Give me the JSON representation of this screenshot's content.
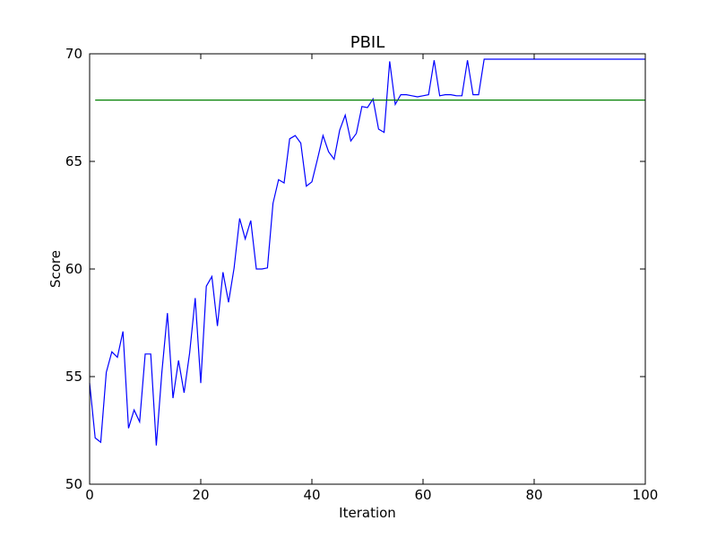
{
  "chart_data": {
    "type": "line",
    "title": "PBIL",
    "xlabel": "Iteration",
    "ylabel": "Score",
    "xlim": [
      0,
      100
    ],
    "ylim": [
      50,
      70
    ],
    "xticks": [
      0,
      20,
      40,
      60,
      80,
      100
    ],
    "yticks": [
      50,
      55,
      60,
      65,
      70
    ],
    "xtick_labels": [
      "0",
      "20",
      "40",
      "60",
      "80",
      "100"
    ],
    "ytick_labels": [
      "50",
      "55",
      "60",
      "65",
      "70"
    ],
    "grid": false,
    "legend": "none",
    "series": [
      {
        "color": "#0000ff",
        "x": [
          0,
          1,
          2,
          3,
          4,
          5,
          6,
          7,
          8,
          9,
          10,
          11,
          12,
          13,
          14,
          15,
          16,
          17,
          18,
          19,
          20,
          21,
          22,
          23,
          24,
          25,
          26,
          27,
          28,
          29,
          30,
          31,
          32,
          33,
          34,
          35,
          36,
          37,
          38,
          39,
          40,
          41,
          42,
          43,
          44,
          45,
          46,
          47,
          48,
          49,
          50,
          51,
          52,
          53,
          54,
          55,
          56,
          57,
          58,
          59,
          60,
          61,
          62,
          63,
          64,
          65,
          66,
          67,
          68,
          69,
          70,
          71,
          72,
          73,
          74,
          75,
          76,
          77,
          78,
          79,
          80,
          81,
          82,
          83,
          84,
          85,
          86,
          87,
          88,
          89,
          90,
          91,
          92,
          93,
          94,
          95,
          96,
          97,
          98,
          99,
          100
        ],
        "y": [
          54.7,
          52.15,
          51.95,
          55.2,
          56.15,
          55.9,
          57.1,
          52.6,
          53.45,
          52.9,
          56.05,
          56.05,
          51.8,
          55.2,
          57.95,
          54.0,
          55.75,
          54.25,
          56.1,
          58.65,
          54.7,
          59.2,
          59.65,
          57.35,
          59.85,
          58.45,
          60.05,
          62.35,
          61.4,
          62.25,
          60.0,
          60.0,
          60.05,
          63.05,
          64.15,
          64.0,
          66.05,
          66.2,
          65.85,
          63.85,
          64.05,
          65.1,
          66.2,
          65.45,
          65.1,
          66.45,
          67.15,
          65.95,
          66.3,
          67.55,
          67.5,
          67.9,
          66.5,
          66.35,
          69.65,
          67.65,
          68.1,
          68.1,
          68.05,
          68.0,
          68.05,
          68.1,
          69.7,
          68.05,
          68.1,
          68.1,
          68.05,
          68.05,
          69.7,
          68.1,
          68.1,
          69.75,
          69.75,
          69.75,
          69.75,
          69.75,
          69.75,
          69.75,
          69.75,
          69.75,
          69.75,
          69.75,
          69.75,
          69.75,
          69.75,
          69.75,
          69.75,
          69.75,
          69.75,
          69.75,
          69.75,
          69.75,
          69.75,
          69.75,
          69.75,
          69.75,
          69.75,
          69.75,
          69.75,
          69.75,
          69.75
        ]
      },
      {
        "color": "#008000",
        "x": [
          1,
          100
        ],
        "y": [
          67.85,
          67.85
        ]
      }
    ]
  }
}
